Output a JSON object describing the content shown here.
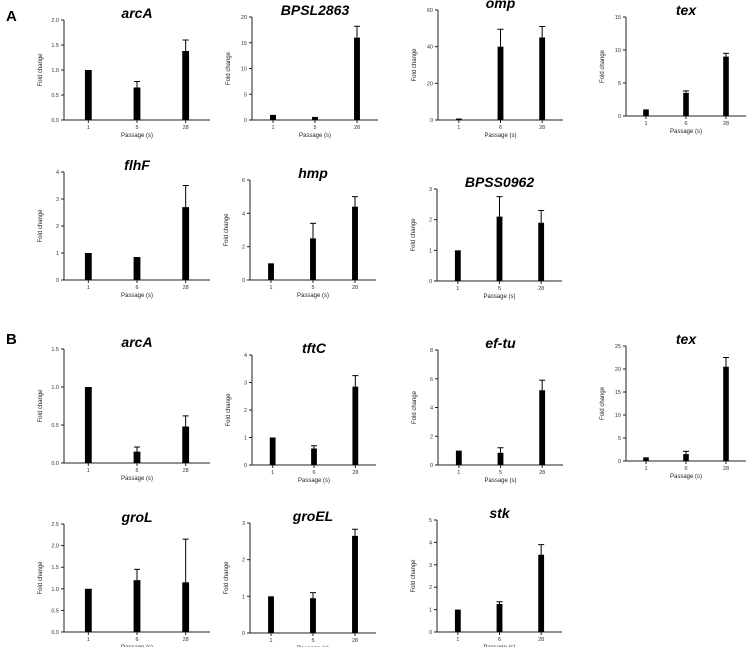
{
  "panel_labels": {
    "a": "A",
    "b": "B"
  },
  "style": {
    "bar_color": "#000000",
    "axis_color": "#222222"
  },
  "chart_data": [
    {
      "panel": "A",
      "type": "bar",
      "title": "arcA",
      "xlabel": "Passage (s)",
      "ylabel": "Fold change",
      "categories": [
        "1",
        "5",
        "28"
      ],
      "values": [
        1.0,
        0.65,
        1.38
      ],
      "errors": [
        0,
        0.12,
        0.22
      ],
      "ylim": [
        0,
        2.0
      ],
      "yticks": [
        "0.0",
        "0.5",
        "1.0",
        "1.5",
        "2.0"
      ]
    },
    {
      "panel": "A",
      "type": "bar",
      "title": "BPSL2863",
      "xlabel": "Passage (s)",
      "ylabel": "Fold change",
      "categories": [
        "1",
        "5",
        "28"
      ],
      "values": [
        1.0,
        0.6,
        16.0
      ],
      "errors": [
        0,
        0,
        2.2
      ],
      "ylim": [
        0,
        20
      ],
      "yticks": [
        "0",
        "5",
        "10",
        "15",
        "20"
      ]
    },
    {
      "panel": "A",
      "type": "bar",
      "title": "omp",
      "xlabel": "Passage (s)",
      "ylabel": "Fold change",
      "categories": [
        "1",
        "6",
        "28"
      ],
      "values": [
        0.8,
        40,
        45
      ],
      "errors": [
        0,
        9.5,
        6
      ],
      "ylim": [
        0,
        60
      ],
      "yticks": [
        "0",
        "20",
        "40",
        "60"
      ]
    },
    {
      "panel": "A",
      "type": "bar",
      "title": "tex",
      "xlabel": "Passage (s)",
      "ylabel": "Fold change",
      "categories": [
        "1",
        "6",
        "28"
      ],
      "values": [
        1.0,
        3.5,
        9.0
      ],
      "errors": [
        0,
        0.3,
        0.5
      ],
      "ylim": [
        0,
        15
      ],
      "yticks": [
        "0",
        "5",
        "10",
        "15"
      ]
    },
    {
      "panel": "A",
      "type": "bar",
      "title": "flhF",
      "xlabel": "Passage (s)",
      "ylabel": "Fold change",
      "categories": [
        "1",
        "6",
        "28"
      ],
      "values": [
        1.0,
        0.85,
        2.7
      ],
      "errors": [
        0,
        0,
        0.8
      ],
      "ylim": [
        0,
        4
      ],
      "yticks": [
        "0",
        "1",
        "2",
        "3",
        "4"
      ]
    },
    {
      "panel": "A",
      "type": "bar",
      "title": "hmp",
      "xlabel": "Passage (s)",
      "ylabel": "Fold change",
      "categories": [
        "1",
        "5",
        "28"
      ],
      "values": [
        1.0,
        2.5,
        4.4
      ],
      "errors": [
        0,
        0.9,
        0.6
      ],
      "ylim": [
        0,
        6
      ],
      "yticks": [
        "0",
        "2",
        "4",
        "6"
      ]
    },
    {
      "panel": "A",
      "type": "bar",
      "title": "BPSS0962",
      "xlabel": "Passage (s)",
      "ylabel": "Fold change",
      "categories": [
        "1",
        "5",
        "28"
      ],
      "values": [
        1.0,
        2.1,
        1.9
      ],
      "errors": [
        0,
        0.65,
        0.4
      ],
      "ylim": [
        0,
        3
      ],
      "yticks": [
        "0",
        "1",
        "2",
        "3"
      ]
    },
    {
      "panel": "B",
      "type": "bar",
      "title": "arcA",
      "xlabel": "Passage (s)",
      "ylabel": "Fold change",
      "categories": [
        "1",
        "6",
        "28"
      ],
      "values": [
        1.0,
        0.15,
        0.48
      ],
      "errors": [
        0,
        0.06,
        0.14
      ],
      "ylim": [
        0,
        1.5
      ],
      "yticks": [
        "0.0",
        "0.5",
        "1.0",
        "1.5"
      ]
    },
    {
      "panel": "B",
      "type": "bar",
      "title": "tftC",
      "xlabel": "Passage (s)",
      "ylabel": "Fold change",
      "categories": [
        "1",
        "6",
        "28"
      ],
      "values": [
        1.0,
        0.6,
        2.85
      ],
      "errors": [
        0,
        0.1,
        0.4
      ],
      "ylim": [
        0,
        4
      ],
      "yticks": [
        "0",
        "1",
        "2",
        "3",
        "4"
      ]
    },
    {
      "panel": "B",
      "type": "bar",
      "title": "ef-tu",
      "xlabel": "Passage (s)",
      "ylabel": "Fold change",
      "categories": [
        "1",
        "5",
        "28"
      ],
      "values": [
        1.0,
        0.85,
        5.2
      ],
      "errors": [
        0,
        0.35,
        0.7
      ],
      "ylim": [
        0,
        8
      ],
      "yticks": [
        "0",
        "2",
        "4",
        "6",
        "8"
      ]
    },
    {
      "panel": "B",
      "type": "bar",
      "title": "tex",
      "xlabel": "Passage (s)",
      "ylabel": "Fold change",
      "categories": [
        "1",
        "6",
        "28"
      ],
      "values": [
        0.8,
        1.5,
        20.5
      ],
      "errors": [
        0,
        0.6,
        2.0
      ],
      "ylim": [
        0,
        25
      ],
      "yticks": [
        "0",
        "5",
        "10",
        "15",
        "20",
        "25"
      ]
    },
    {
      "panel": "B",
      "type": "bar",
      "title": "groL",
      "xlabel": "Passage (s)",
      "ylabel": "Fold change",
      "categories": [
        "1",
        "6",
        "28"
      ],
      "values": [
        1.0,
        1.2,
        1.15
      ],
      "errors": [
        0,
        0.25,
        1.0
      ],
      "ylim": [
        0,
        2.5
      ],
      "yticks": [
        "0.0",
        "0.5",
        "1.0",
        "1.5",
        "2.0",
        "2.5"
      ]
    },
    {
      "panel": "B",
      "type": "bar",
      "title": "groEL",
      "xlabel": "Passage (s)",
      "ylabel": "Fold change",
      "categories": [
        "1",
        "5",
        "28"
      ],
      "values": [
        1.0,
        0.95,
        2.65
      ],
      "errors": [
        0,
        0.15,
        0.18
      ],
      "ylim": [
        0,
        3
      ],
      "yticks": [
        "0",
        "1",
        "2",
        "3"
      ]
    },
    {
      "panel": "B",
      "type": "bar",
      "title": "stk",
      "xlabel": "Passage (s)",
      "ylabel": "Fold change",
      "categories": [
        "1",
        "6",
        "28"
      ],
      "values": [
        1.0,
        1.25,
        3.45
      ],
      "errors": [
        0,
        0.1,
        0.45
      ],
      "ylim": [
        0,
        5
      ],
      "yticks": [
        "0",
        "1",
        "2",
        "3",
        "4",
        "5"
      ]
    }
  ]
}
